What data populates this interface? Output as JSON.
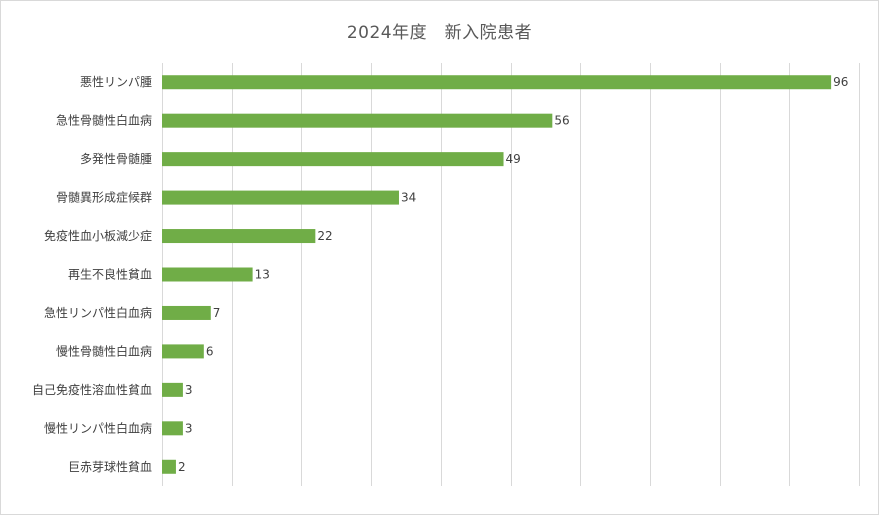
{
  "chart_data": {
    "type": "bar",
    "orientation": "horizontal",
    "title": "2024年度　新入院患者",
    "categories": [
      "悪性リンパ腫",
      "急性骨髄性白血病",
      "多発性骨髄腫",
      "骨髄異形成症候群",
      "免疫性血小板減少症",
      "再生不良性貧血",
      "急性リンパ性白血病",
      "慢性骨髄性白血病",
      "自己免疫性溶血性貧血",
      "慢性リンパ性白血病",
      "巨赤芽球性貧血"
    ],
    "values": [
      96,
      56,
      49,
      34,
      22,
      13,
      7,
      6,
      3,
      3,
      2
    ],
    "xlim": [
      0,
      100
    ],
    "grid": true,
    "legend": "none",
    "bar_color": "#70ad47",
    "grid_color": "#d9d9d9"
  }
}
